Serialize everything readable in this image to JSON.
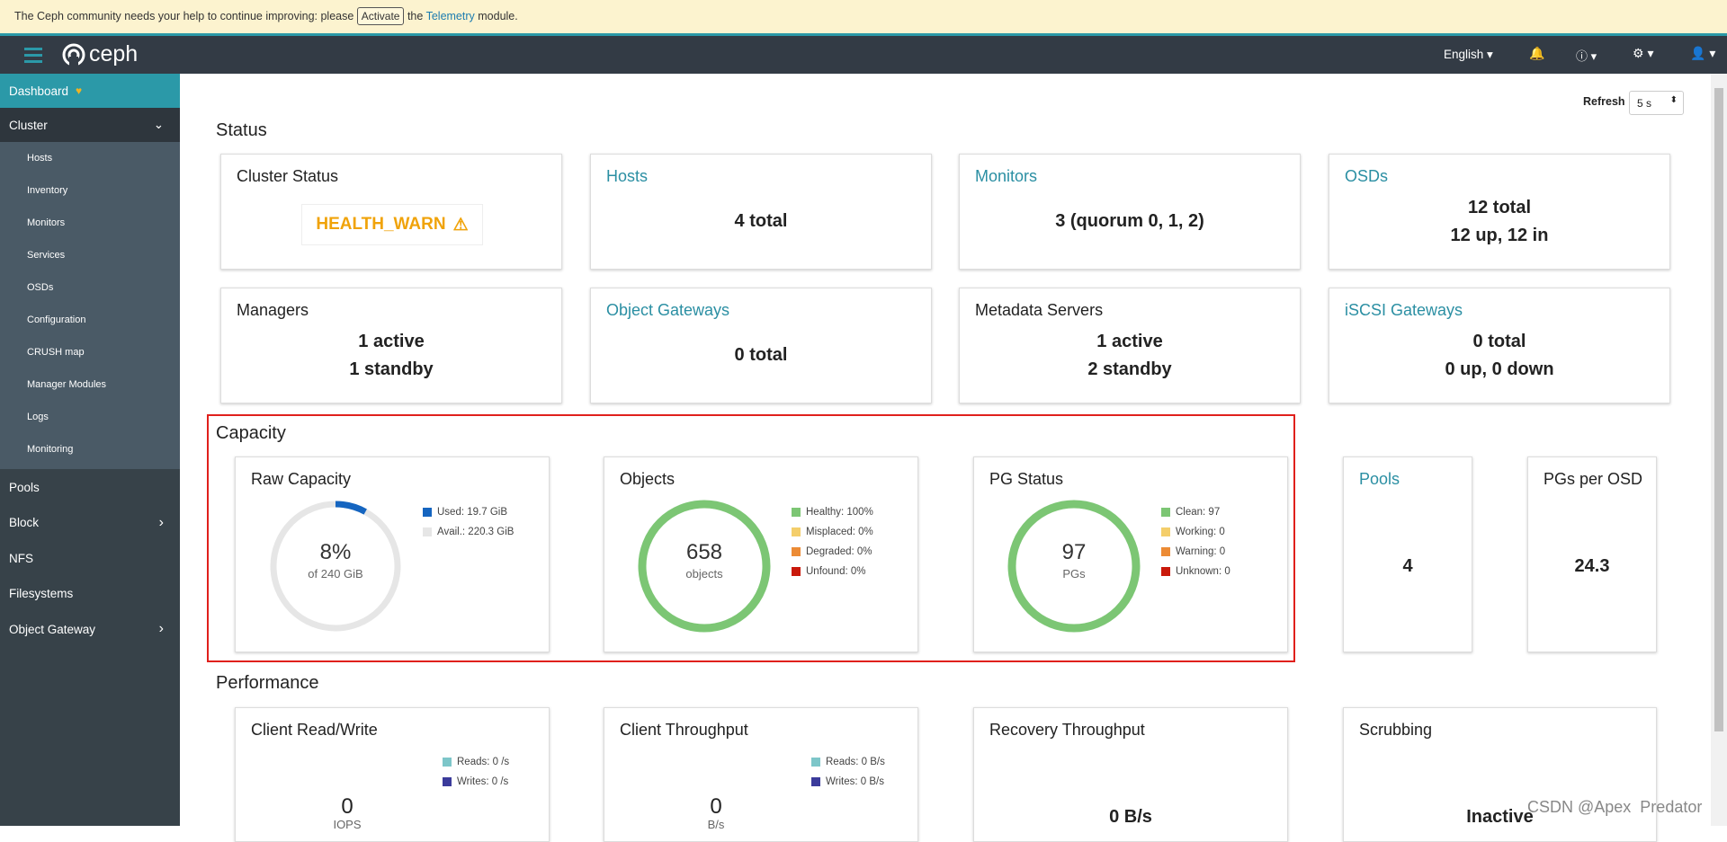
{
  "banner": {
    "before": "The Ceph community needs your help to continue improving: please",
    "button": "Activate",
    "middle": "the",
    "link": "Telemetry",
    "after": "module."
  },
  "navbar": {
    "brand": "ceph",
    "language": "English"
  },
  "sidebar": {
    "dashboard": "Dashboard",
    "cluster": "Cluster",
    "cluster_items": [
      "Hosts",
      "Inventory",
      "Monitors",
      "Services",
      "OSDs",
      "Configuration",
      "CRUSH map",
      "Manager Modules",
      "Logs",
      "Monitoring"
    ],
    "items": [
      "Pools",
      "Block",
      "NFS",
      "Filesystems",
      "Object Gateway"
    ]
  },
  "refresh": {
    "label": "Refresh",
    "select": "5 s"
  },
  "status": {
    "title": "Status",
    "cards": [
      {
        "title": "Cluster Status",
        "badge": "HEALTH_WARN"
      },
      {
        "title": "Hosts",
        "link": true,
        "lines": [
          "4 total"
        ]
      },
      {
        "title": "Monitors",
        "link": true,
        "lines": [
          "3 (quorum 0, 1, 2)"
        ]
      },
      {
        "title": "OSDs",
        "link": true,
        "lines": [
          "12 total",
          "12 up, 12 in"
        ]
      },
      {
        "title": "Managers",
        "lines": [
          "1 active",
          "1 standby"
        ]
      },
      {
        "title": "Object Gateways",
        "link": true,
        "lines": [
          "0 total"
        ]
      },
      {
        "title": "Metadata Servers",
        "lines": [
          "1 active",
          "2 standby"
        ]
      },
      {
        "title": "iSCSI Gateways",
        "link": true,
        "lines": [
          "0 total",
          "0 up, 0 down"
        ]
      }
    ]
  },
  "capacity": {
    "title": "Capacity",
    "raw": {
      "title": "Raw Capacity",
      "percent": {
        "value": 8,
        "label": "8%"
      },
      "sub": "of 240 GiB",
      "legend": [
        {
          "label": "Used: 19.7 GiB",
          "color": "#1565c0"
        },
        {
          "label": "Avail.: 220.3 GiB",
          "color": "#e6e6e6"
        }
      ]
    },
    "objects": {
      "title": "Objects",
      "center": "658",
      "sub": "objects",
      "legend": [
        {
          "label": "Healthy: 100%",
          "color": "#7cc674"
        },
        {
          "label": "Misplaced: 0%",
          "color": "#f4ce6b"
        },
        {
          "label": "Degraded: 0%",
          "color": "#ec8b35"
        },
        {
          "label": "Unfound: 0%",
          "color": "#c9190b"
        }
      ]
    },
    "pg": {
      "title": "PG Status",
      "center": "97",
      "sub": "PGs",
      "legend": [
        {
          "label": "Clean: 97",
          "color": "#7cc674"
        },
        {
          "label": "Working: 0",
          "color": "#f4ce6b"
        },
        {
          "label": "Warning: 0",
          "color": "#ec8b35"
        },
        {
          "label": "Unknown: 0",
          "color": "#c9190b"
        }
      ]
    },
    "pools": {
      "title": "Pools",
      "value": "4"
    },
    "pgs_per_osd": {
      "title": "PGs per OSD",
      "value": "24.3"
    }
  },
  "performance": {
    "title": "Performance",
    "cards": [
      {
        "title": "Client Read/Write",
        "center": "0",
        "sub": "IOPS",
        "legend": [
          {
            "label": "Reads: 0 /s",
            "color": "#7dc6c9"
          },
          {
            "label": "Writes: 0 /s",
            "color": "#3b3b9b"
          }
        ]
      },
      {
        "title": "Client Throughput",
        "center": "0",
        "sub": "B/s",
        "legend": [
          {
            "label": "Reads: 0 B/s",
            "color": "#7dc6c9"
          },
          {
            "label": "Writes: 0 B/s",
            "color": "#3b3b9b"
          }
        ]
      },
      {
        "title": "Recovery Throughput",
        "value": "0 B/s"
      },
      {
        "title": "Scrubbing",
        "value": "Inactive"
      }
    ]
  },
  "watermark": "CSDN @Apex  Predator"
}
